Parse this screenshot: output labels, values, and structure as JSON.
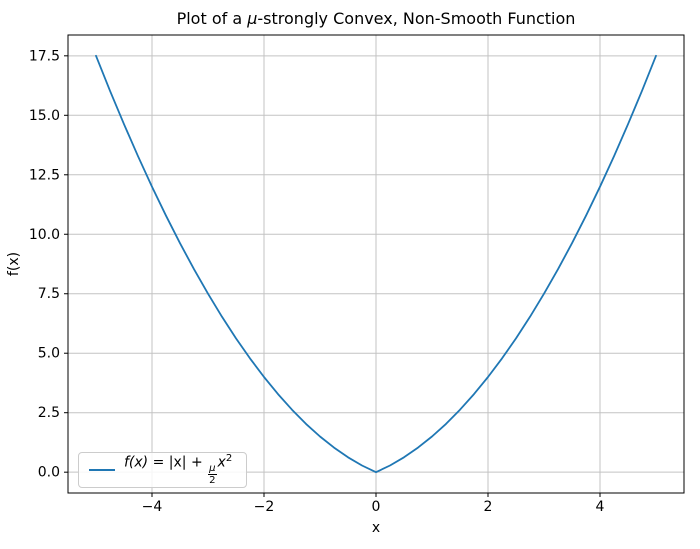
{
  "title": {
    "prefix": "Plot of a ",
    "mu": "μ",
    "suffix": "-strongly Convex, Non-Smooth Function"
  },
  "axes": {
    "xlabel": "x",
    "ylabel": "f(x)"
  },
  "legend": {
    "f": "f(x)",
    "eq": " = |x| + ",
    "frac_num": "μ",
    "frac_den": "2",
    "xvar": "x",
    "exponent": "2"
  },
  "colors": {
    "line": "#1f77b4",
    "grid": "#c3c3c3",
    "spine": "#000000",
    "tick": "#000000",
    "legend_border": "#cccccc",
    "background": "#ffffff"
  },
  "chart_data": {
    "type": "line",
    "title": "Plot of a μ-strongly Convex, Non-Smooth Function",
    "xlabel": "x",
    "ylabel": "f(x)",
    "legend_label": "f(x) = |x| + (μ/2)x²",
    "legend_position": "lower left",
    "grid": true,
    "mu": 1,
    "line_color": "#1f77b4",
    "xlim": [
      -5.5,
      5.5
    ],
    "ylim": [
      -0.875,
      18.375
    ],
    "xticks": [
      -4,
      -2,
      0,
      2,
      4
    ],
    "yticks": [
      0.0,
      2.5,
      5.0,
      7.5,
      10.0,
      12.5,
      15.0,
      17.5
    ],
    "x": [
      -5,
      -4.75,
      -4.5,
      -4.25,
      -4,
      -3.75,
      -3.5,
      -3.25,
      -3,
      -2.75,
      -2.5,
      -2.25,
      -2,
      -1.75,
      -1.5,
      -1.25,
      -1,
      -0.75,
      -0.5,
      -0.25,
      0,
      0.25,
      0.5,
      0.75,
      1,
      1.25,
      1.5,
      1.75,
      2,
      2.25,
      2.5,
      2.75,
      3,
      3.25,
      3.5,
      3.75,
      4,
      4.25,
      4.5,
      4.75,
      5
    ],
    "y": [
      17.5,
      16.03125,
      14.625,
      13.28125,
      12,
      10.78125,
      9.625,
      8.53125,
      7.5,
      6.53125,
      5.625,
      4.78125,
      4,
      3.28125,
      2.625,
      2.03125,
      1.5,
      1.03125,
      0.625,
      0.28125,
      0,
      0.28125,
      0.625,
      1.03125,
      1.5,
      2.03125,
      2.625,
      3.28125,
      4,
      4.78125,
      5.625,
      6.53125,
      7.5,
      8.53125,
      9.625,
      10.78125,
      12,
      13.28125,
      14.625,
      16.03125,
      17.5
    ]
  }
}
